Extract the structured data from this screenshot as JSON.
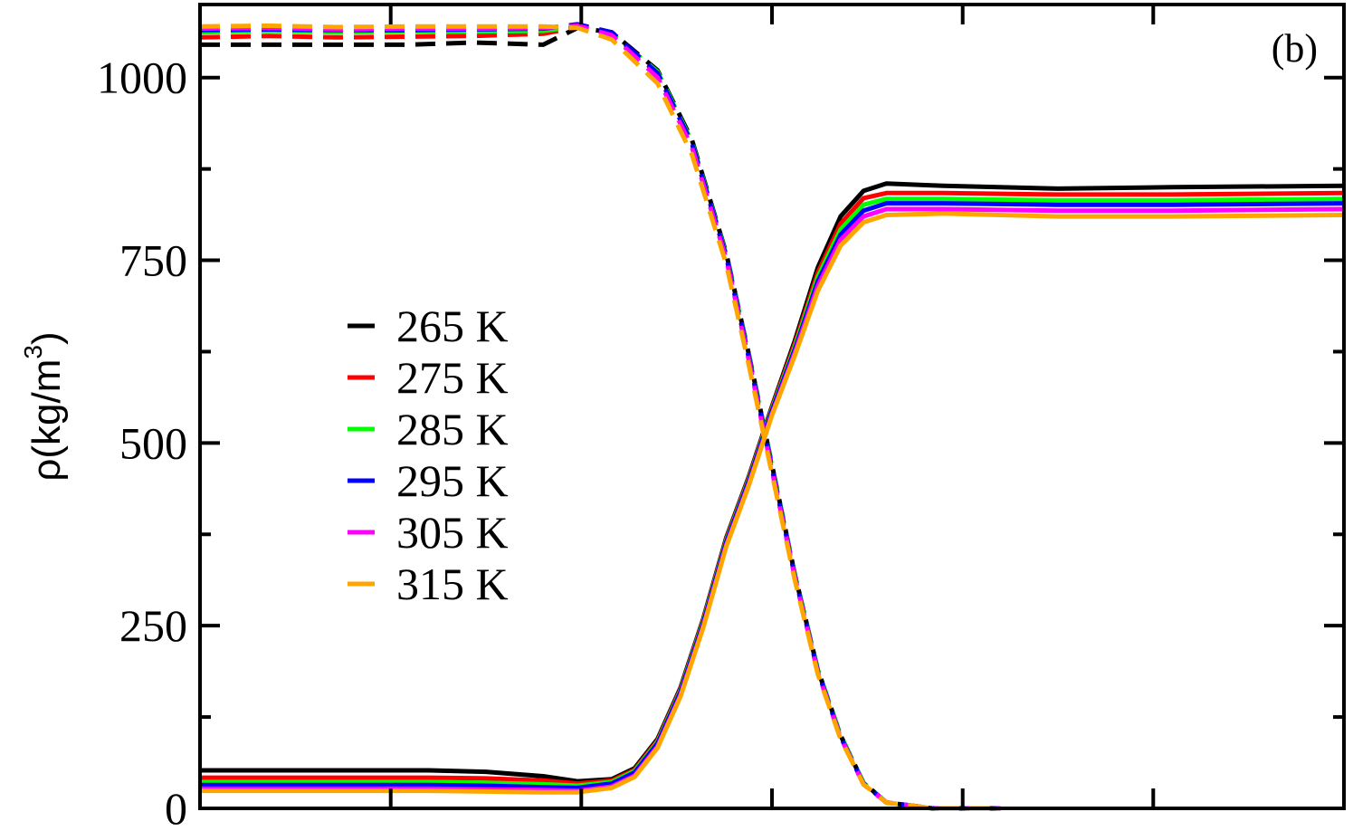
{
  "chart_data": {
    "type": "line",
    "title": "",
    "panel_label": "(b)",
    "xlabel": "",
    "ylabel": "ρ(kg/m",
    "ylabel_superscript": "3",
    "ylabel_close": ")",
    "xlim": [
      0,
      1
    ],
    "ylim": [
      0,
      1100
    ],
    "yticks": [
      0,
      250,
      500,
      750,
      1000
    ],
    "ytick_labels": [
      "0",
      "250",
      "500",
      "750",
      "1000"
    ],
    "y_minor_ticks": [
      125,
      375,
      625,
      875
    ],
    "xticks": [
      0.1667,
      0.3333,
      0.5,
      0.6667,
      0.8333
    ],
    "grid": false,
    "legend_placement": "center-left",
    "series_style_note": [
      "solid",
      "dashed"
    ],
    "series": [
      {
        "name": "265 K",
        "color": "#000000",
        "dashed_plateau": 1045,
        "solid_low": 52,
        "solid_high": 850,
        "dashed_x": [
          0,
          0.06,
          0.12,
          0.18,
          0.24,
          0.3,
          0.33,
          0.36,
          0.4,
          0.43,
          0.46,
          0.48,
          0.5,
          0.52,
          0.54,
          0.56,
          0.58,
          0.6,
          0.64,
          0.7
        ],
        "dashed_y": [
          1045,
          1045,
          1045,
          1045,
          1048,
          1045,
          1068,
          1062,
          1010,
          915,
          760,
          620,
          470,
          320,
          190,
          100,
          35,
          8,
          0,
          0
        ],
        "solid_x": [
          0,
          0.1,
          0.2,
          0.25,
          0.3,
          0.33,
          0.36,
          0.38,
          0.4,
          0.42,
          0.44,
          0.46,
          0.48,
          0.5,
          0.52,
          0.54,
          0.56,
          0.58,
          0.6,
          0.65,
          0.75,
          0.85,
          1.0
        ],
        "solid_y": [
          52,
          52,
          52,
          50,
          44,
          37,
          40,
          55,
          95,
          165,
          260,
          370,
          455,
          550,
          640,
          740,
          810,
          845,
          855,
          852,
          848,
          850,
          852
        ]
      },
      {
        "name": "275 K",
        "color": "#ff0000",
        "dashed_plateau": 1055,
        "solid_low": 42,
        "solid_high": 840,
        "dashed_x": [
          0,
          0.06,
          0.12,
          0.18,
          0.24,
          0.3,
          0.33,
          0.36,
          0.4,
          0.43,
          0.46,
          0.48,
          0.5,
          0.52,
          0.54,
          0.56,
          0.58,
          0.6,
          0.64,
          0.7
        ],
        "dashed_y": [
          1055,
          1057,
          1055,
          1056,
          1057,
          1060,
          1069,
          1060,
          1005,
          910,
          755,
          615,
          465,
          318,
          188,
          98,
          34,
          8,
          0,
          0
        ],
        "solid_x": [
          0,
          0.1,
          0.2,
          0.25,
          0.3,
          0.33,
          0.36,
          0.38,
          0.4,
          0.42,
          0.44,
          0.46,
          0.48,
          0.5,
          0.52,
          0.54,
          0.56,
          0.58,
          0.6,
          0.65,
          0.75,
          0.85,
          1.0
        ],
        "solid_y": [
          42,
          42,
          42,
          41,
          38,
          34,
          38,
          53,
          93,
          163,
          258,
          368,
          453,
          548,
          636,
          733,
          800,
          835,
          842,
          842,
          840,
          840,
          842
        ]
      },
      {
        "name": "285 K",
        "color": "#00ff00",
        "dashed_plateau": 1062,
        "solid_low": 36,
        "solid_high": 832,
        "dashed_x": [
          0,
          0.06,
          0.12,
          0.18,
          0.24,
          0.3,
          0.33,
          0.36,
          0.4,
          0.43,
          0.46,
          0.48,
          0.5,
          0.52,
          0.54,
          0.56,
          0.58,
          0.6,
          0.64,
          0.7
        ],
        "dashed_y": [
          1062,
          1064,
          1062,
          1063,
          1063,
          1064,
          1070,
          1060,
          1008,
          912,
          758,
          618,
          468,
          320,
          190,
          100,
          35,
          8,
          0,
          0
        ],
        "solid_x": [
          0,
          0.1,
          0.2,
          0.25,
          0.3,
          0.33,
          0.36,
          0.38,
          0.4,
          0.42,
          0.44,
          0.46,
          0.48,
          0.5,
          0.52,
          0.54,
          0.56,
          0.58,
          0.6,
          0.65,
          0.75,
          0.85,
          1.0
        ],
        "solid_y": [
          36,
          36,
          36,
          35,
          33,
          31,
          36,
          51,
          91,
          161,
          256,
          366,
          451,
          546,
          632,
          727,
          792,
          826,
          834,
          834,
          832,
          832,
          834
        ]
      },
      {
        "name": "295 K",
        "color": "#0000ff",
        "dashed_plateau": 1065,
        "solid_low": 32,
        "solid_high": 826,
        "dashed_x": [
          0,
          0.06,
          0.12,
          0.18,
          0.24,
          0.3,
          0.33,
          0.36,
          0.4,
          0.43,
          0.46,
          0.48,
          0.5,
          0.52,
          0.54,
          0.56,
          0.58,
          0.6,
          0.64,
          0.7
        ],
        "dashed_y": [
          1065,
          1066,
          1065,
          1065,
          1066,
          1067,
          1073,
          1062,
          1006,
          910,
          756,
          616,
          466,
          318,
          188,
          98,
          34,
          8,
          0,
          0
        ],
        "solid_x": [
          0,
          0.1,
          0.2,
          0.25,
          0.3,
          0.33,
          0.36,
          0.38,
          0.4,
          0.42,
          0.44,
          0.46,
          0.48,
          0.5,
          0.52,
          0.54,
          0.56,
          0.58,
          0.6,
          0.65,
          0.75,
          0.85,
          1.0
        ],
        "solid_y": [
          32,
          32,
          32,
          31,
          29,
          28,
          34,
          49,
          89,
          159,
          254,
          364,
          449,
          544,
          628,
          721,
          785,
          818,
          828,
          828,
          826,
          826,
          828
        ]
      },
      {
        "name": "305 K",
        "color": "#ff00ff",
        "dashed_plateau": 1067,
        "solid_low": 27,
        "solid_high": 820,
        "dashed_x": [
          0,
          0.06,
          0.12,
          0.18,
          0.24,
          0.3,
          0.33,
          0.36,
          0.4,
          0.43,
          0.46,
          0.48,
          0.5,
          0.52,
          0.54,
          0.56,
          0.58,
          0.6,
          0.64,
          0.7
        ],
        "dashed_y": [
          1067,
          1068,
          1066,
          1067,
          1067,
          1068,
          1071,
          1058,
          1000,
          905,
          752,
          612,
          462,
          316,
          186,
          97,
          33,
          8,
          0,
          0
        ],
        "solid_x": [
          0,
          0.1,
          0.2,
          0.25,
          0.3,
          0.33,
          0.36,
          0.38,
          0.4,
          0.42,
          0.44,
          0.46,
          0.48,
          0.5,
          0.52,
          0.54,
          0.56,
          0.58,
          0.6,
          0.65,
          0.75,
          0.85,
          1.0
        ],
        "solid_y": [
          27,
          27,
          27,
          26,
          25,
          24,
          30,
          45,
          85,
          155,
          250,
          360,
          445,
          540,
          624,
          715,
          778,
          810,
          820,
          820,
          818,
          818,
          820
        ]
      },
      {
        "name": "315 K",
        "color": "#ffa500",
        "dashed_plateau": 1070,
        "solid_low": 24,
        "solid_high": 812,
        "dashed_x": [
          0,
          0.06,
          0.12,
          0.18,
          0.24,
          0.3,
          0.33,
          0.36,
          0.4,
          0.43,
          0.46,
          0.48,
          0.5,
          0.52,
          0.54,
          0.56,
          0.58,
          0.6,
          0.64,
          0.7
        ],
        "dashed_y": [
          1070,
          1071,
          1069,
          1070,
          1070,
          1070,
          1068,
          1052,
          992,
          895,
          745,
          605,
          458,
          312,
          184,
          95,
          33,
          8,
          0,
          0
        ],
        "solid_x": [
          0,
          0.1,
          0.2,
          0.25,
          0.3,
          0.33,
          0.36,
          0.38,
          0.4,
          0.42,
          0.44,
          0.46,
          0.48,
          0.5,
          0.52,
          0.54,
          0.56,
          0.58,
          0.6,
          0.65,
          0.75,
          0.85,
          1.0
        ],
        "solid_y": [
          24,
          24,
          24,
          23,
          22,
          22,
          28,
          43,
          83,
          153,
          248,
          358,
          443,
          538,
          620,
          708,
          770,
          802,
          812,
          814,
          810,
          810,
          812
        ]
      }
    ]
  }
}
